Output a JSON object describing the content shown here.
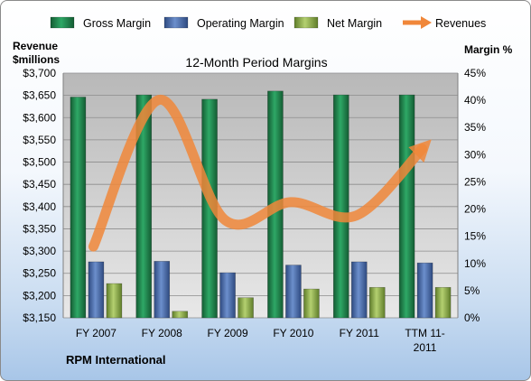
{
  "chart_data": {
    "type": "bar",
    "title": "12-Month Period Margins",
    "company": "RPM International",
    "categories": [
      "FY 2007",
      "FY 2008",
      "FY 2009",
      "FY 2010",
      "FY 2011",
      "TTM 11-2011"
    ],
    "category_lines": [
      [
        "FY 2007"
      ],
      [
        "FY 2008"
      ],
      [
        "FY 2009"
      ],
      [
        "FY 2010"
      ],
      [
        "FY 2011"
      ],
      [
        "TTM 11-",
        "2011"
      ]
    ],
    "series": [
      {
        "name": "Gross Margin",
        "axis": "right",
        "type": "bar",
        "color": "#1e8449",
        "values": [
          40.6,
          41.0,
          40.2,
          41.7,
          41.0,
          41.0
        ]
      },
      {
        "name": "Operating Margin",
        "axis": "right",
        "type": "bar",
        "color": "#4a6eb0",
        "values": [
          10.3,
          10.4,
          8.3,
          9.7,
          10.3,
          10.1
        ]
      },
      {
        "name": "Net Margin",
        "axis": "right",
        "type": "bar",
        "color": "#8db04a",
        "values": [
          6.3,
          1.2,
          3.7,
          5.3,
          5.6,
          5.6
        ]
      },
      {
        "name": "Revenues",
        "axis": "left",
        "type": "line",
        "color": "#f0873a",
        "values": [
          3310,
          3640,
          3370,
          3410,
          3380,
          3530
        ]
      }
    ],
    "left_axis": {
      "title_lines": [
        "Revenue",
        "$millions"
      ],
      "min": 3150,
      "max": 3700,
      "step": 50,
      "tick_labels": [
        "$3,150",
        "$3,200",
        "$3,250",
        "$3,300",
        "$3,350",
        "$3,400",
        "$3,450",
        "$3,500",
        "$3,550",
        "$3,600",
        "$3,650",
        "$3,700"
      ]
    },
    "right_axis": {
      "title": "Margin %",
      "min": 0,
      "max": 45,
      "step": 5,
      "tick_labels": [
        "0%",
        "5%",
        "10%",
        "15%",
        "20%",
        "25%",
        "30%",
        "35%",
        "40%",
        "45%"
      ]
    },
    "legend": {
      "placement": "top"
    },
    "grid": true
  },
  "colors": {
    "plot_background": "#c0c0c0",
    "gridline": "#8c8c8c",
    "revenue_line": "#f0873a"
  }
}
